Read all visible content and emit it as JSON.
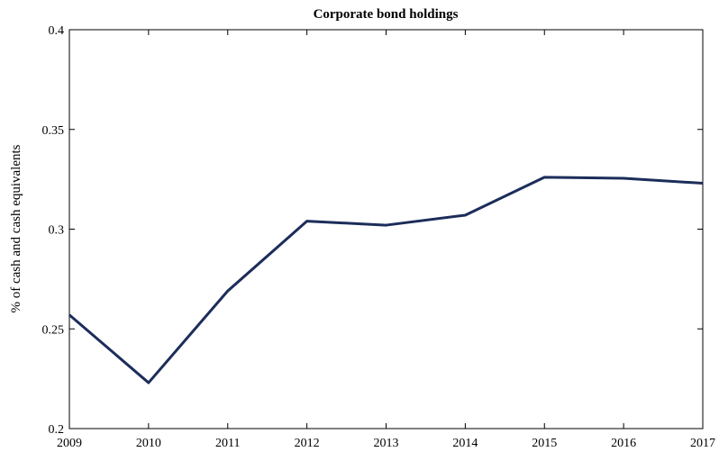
{
  "chart_data": {
    "type": "line",
    "title": "Corporate bond holdings",
    "y_label": "% of cash and cash equivalents",
    "x": [
      2009,
      2010,
      2011,
      2012,
      2013,
      2014,
      2015,
      2016,
      2017
    ],
    "series": [
      {
        "name": "Corporate bond holdings",
        "color": "#1c2d5a",
        "values": [
          0.257,
          0.223,
          0.269,
          0.304,
          0.302,
          0.307,
          0.326,
          0.3255,
          0.323
        ]
      }
    ],
    "xlim": [
      2009,
      2017
    ],
    "xticks": [
      2009,
      2010,
      2011,
      2012,
      2013,
      2014,
      2015,
      2016,
      2017
    ],
    "ylim": [
      0.2,
      0.4
    ],
    "yticks": [
      0.2,
      0.25,
      0.3,
      0.35,
      0.4
    ],
    "grid": false
  }
}
